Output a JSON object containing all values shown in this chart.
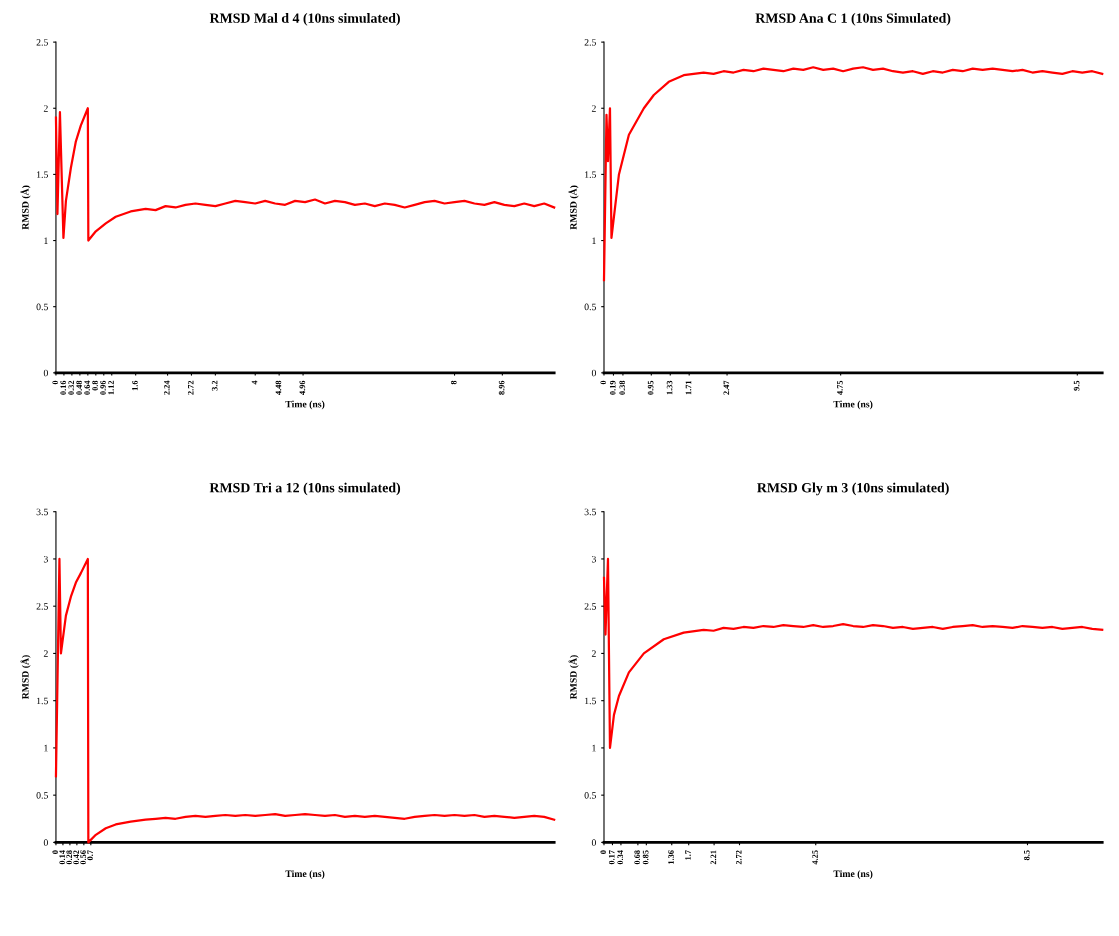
{
  "chart_data": [
    {
      "type": "line",
      "title": "RMSD Mal d 4 (10ns simulated)",
      "xlabel": "Time (ns)",
      "ylabel": "RMSD (Å)",
      "grid": false,
      "xlim": [
        0,
        10
      ],
      "ylim": [
        0,
        2.5
      ],
      "yticks": [
        0,
        0.5,
        1,
        1.5,
        2,
        2.5
      ],
      "xticks": [
        0,
        0.16,
        0.32,
        0.48,
        0.64,
        0.8,
        0.96,
        1.12,
        1.6,
        2.24,
        2.72,
        3.2,
        4,
        4.48,
        4.96,
        8,
        8.96
      ],
      "x": [
        0,
        0.03,
        0.08,
        0.15,
        0.2,
        0.3,
        0.4,
        0.5,
        0.64,
        0.65,
        0.8,
        1.0,
        1.2,
        1.5,
        1.8,
        2.0,
        2.2,
        2.4,
        2.6,
        2.8,
        3.0,
        3.2,
        3.4,
        3.6,
        3.8,
        4.0,
        4.2,
        4.4,
        4.6,
        4.8,
        5.0,
        5.2,
        5.4,
        5.6,
        5.8,
        6.0,
        6.2,
        6.4,
        6.6,
        6.8,
        7.0,
        7.2,
        7.4,
        7.6,
        7.8,
        8.0,
        8.2,
        8.4,
        8.6,
        8.8,
        9.0,
        9.2,
        9.4,
        9.6,
        9.8,
        10
      ],
      "series": [
        {
          "color": "#ff0000",
          "values": [
            1.93,
            1.2,
            1.97,
            1.02,
            1.3,
            1.55,
            1.75,
            1.87,
            2.0,
            1.0,
            1.07,
            1.13,
            1.18,
            1.22,
            1.24,
            1.23,
            1.26,
            1.25,
            1.27,
            1.28,
            1.27,
            1.26,
            1.28,
            1.3,
            1.29,
            1.28,
            1.3,
            1.28,
            1.27,
            1.3,
            1.29,
            1.31,
            1.28,
            1.3,
            1.29,
            1.27,
            1.28,
            1.26,
            1.28,
            1.27,
            1.25,
            1.27,
            1.29,
            1.3,
            1.28,
            1.29,
            1.3,
            1.28,
            1.27,
            1.29,
            1.27,
            1.26,
            1.28,
            1.26,
            1.28,
            1.25
          ]
        }
      ]
    },
    {
      "type": "line",
      "title": "RMSD Ana C 1 (10ns Simulated)",
      "xlabel": "Time (ns)",
      "ylabel": "RMSD (Å)",
      "grid": false,
      "xlim": [
        0,
        10
      ],
      "ylim": [
        0,
        2.5
      ],
      "yticks": [
        0,
        0.5,
        1,
        1.5,
        2,
        2.5
      ],
      "xticks": [
        0,
        0.19,
        0.38,
        0.95,
        1.33,
        1.71,
        2.47,
        4.75,
        9.5
      ],
      "x": [
        0,
        0.05,
        0.08,
        0.12,
        0.15,
        0.3,
        0.5,
        0.8,
        1.0,
        1.3,
        1.6,
        2.0,
        2.2,
        2.4,
        2.6,
        2.8,
        3.0,
        3.2,
        3.4,
        3.6,
        3.8,
        4.0,
        4.2,
        4.4,
        4.6,
        4.8,
        5.0,
        5.2,
        5.4,
        5.6,
        5.8,
        6.0,
        6.2,
        6.4,
        6.6,
        6.8,
        7.0,
        7.2,
        7.4,
        7.6,
        7.8,
        8.0,
        8.2,
        8.4,
        8.6,
        8.8,
        9.0,
        9.2,
        9.4,
        9.6,
        9.8,
        10
      ],
      "series": [
        {
          "color": "#ff0000",
          "values": [
            0.7,
            1.95,
            1.6,
            2.0,
            1.02,
            1.5,
            1.8,
            2.0,
            2.1,
            2.2,
            2.25,
            2.27,
            2.26,
            2.28,
            2.27,
            2.29,
            2.28,
            2.3,
            2.29,
            2.28,
            2.3,
            2.29,
            2.31,
            2.29,
            2.3,
            2.28,
            2.3,
            2.31,
            2.29,
            2.3,
            2.28,
            2.27,
            2.28,
            2.26,
            2.28,
            2.27,
            2.29,
            2.28,
            2.3,
            2.29,
            2.3,
            2.29,
            2.28,
            2.29,
            2.27,
            2.28,
            2.27,
            2.26,
            2.28,
            2.27,
            2.28,
            2.26
          ]
        }
      ]
    },
    {
      "type": "line",
      "title": "RMSD Tri a 12 (10ns simulated)",
      "xlabel": "Time (ns)",
      "ylabel": "RMSD (Å)",
      "grid": false,
      "xlim": [
        0,
        10
      ],
      "ylim": [
        0,
        3.5
      ],
      "yticks": [
        0,
        0.5,
        1,
        1.5,
        2,
        2.5,
        3,
        3.5
      ],
      "xticks": [
        0,
        0.14,
        0.28,
        0.42,
        0.56,
        0.7
      ],
      "x": [
        0,
        0.07,
        0.1,
        0.2,
        0.3,
        0.4,
        0.5,
        0.64,
        0.65,
        0.8,
        1.0,
        1.2,
        1.5,
        1.8,
        2.0,
        2.2,
        2.4,
        2.6,
        2.8,
        3.0,
        3.2,
        3.4,
        3.6,
        3.8,
        4.0,
        4.2,
        4.4,
        4.6,
        4.8,
        5.0,
        5.2,
        5.4,
        5.6,
        5.8,
        6.0,
        6.2,
        6.4,
        6.6,
        6.8,
        7.0,
        7.2,
        7.4,
        7.6,
        7.8,
        8.0,
        8.2,
        8.4,
        8.6,
        8.8,
        9.0,
        9.2,
        9.4,
        9.6,
        9.8,
        10
      ],
      "series": [
        {
          "color": "#ff0000",
          "values": [
            0.7,
            3.0,
            2.0,
            2.4,
            2.6,
            2.75,
            2.85,
            3.0,
            0.0,
            0.08,
            0.15,
            0.19,
            0.22,
            0.24,
            0.25,
            0.26,
            0.25,
            0.27,
            0.28,
            0.27,
            0.28,
            0.29,
            0.28,
            0.29,
            0.28,
            0.29,
            0.3,
            0.28,
            0.29,
            0.3,
            0.29,
            0.28,
            0.29,
            0.27,
            0.28,
            0.27,
            0.28,
            0.27,
            0.26,
            0.25,
            0.27,
            0.28,
            0.29,
            0.28,
            0.29,
            0.28,
            0.29,
            0.27,
            0.28,
            0.27,
            0.26,
            0.27,
            0.28,
            0.27,
            0.24
          ]
        }
      ]
    },
    {
      "type": "line",
      "title": "RMSD Gly m 3 (10ns simulated)",
      "xlabel": "Time (ns)",
      "ylabel": "RMSD (Å)",
      "grid": false,
      "xlim": [
        0,
        10
      ],
      "ylim": [
        0,
        3.5
      ],
      "yticks": [
        0,
        0.5,
        1,
        1.5,
        2,
        2.5,
        3,
        3.5
      ],
      "xticks": [
        0,
        0.17,
        0.34,
        0.68,
        0.85,
        1.36,
        1.7,
        2.21,
        2.72,
        4.25,
        8.5
      ],
      "x": [
        0,
        0.03,
        0.08,
        0.12,
        0.2,
        0.3,
        0.5,
        0.8,
        1.2,
        1.6,
        2.0,
        2.2,
        2.4,
        2.6,
        2.8,
        3.0,
        3.2,
        3.4,
        3.6,
        3.8,
        4.0,
        4.2,
        4.4,
        4.6,
        4.8,
        5.0,
        5.2,
        5.4,
        5.6,
        5.8,
        6.0,
        6.2,
        6.4,
        6.6,
        6.8,
        7.0,
        7.2,
        7.4,
        7.6,
        7.8,
        8.0,
        8.2,
        8.4,
        8.6,
        8.8,
        9.0,
        9.2,
        9.4,
        9.6,
        9.8,
        10
      ],
      "series": [
        {
          "color": "#ff0000",
          "values": [
            2.8,
            2.2,
            3.0,
            1.0,
            1.35,
            1.55,
            1.8,
            2.0,
            2.15,
            2.22,
            2.25,
            2.24,
            2.27,
            2.26,
            2.28,
            2.27,
            2.29,
            2.28,
            2.3,
            2.29,
            2.28,
            2.3,
            2.28,
            2.29,
            2.31,
            2.29,
            2.28,
            2.3,
            2.29,
            2.27,
            2.28,
            2.26,
            2.27,
            2.28,
            2.26,
            2.28,
            2.29,
            2.3,
            2.28,
            2.29,
            2.28,
            2.27,
            2.29,
            2.28,
            2.27,
            2.28,
            2.26,
            2.27,
            2.28,
            2.26,
            2.25
          ]
        }
      ]
    }
  ]
}
